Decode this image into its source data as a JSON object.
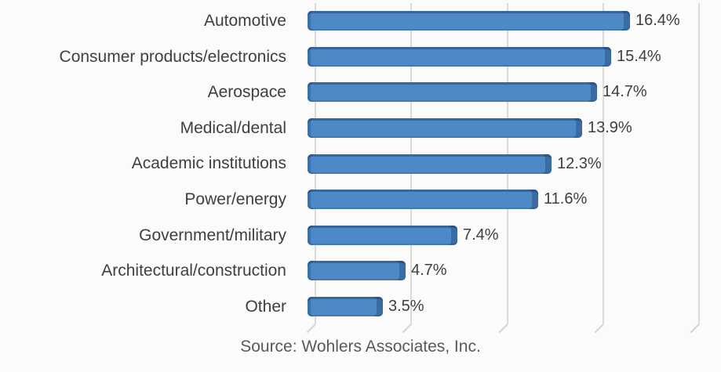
{
  "chart_data": {
    "type": "bar",
    "orientation": "horizontal",
    "title": "",
    "categories": [
      "Automotive",
      "Consumer products/electronics",
      "Aerospace",
      "Medical/dental",
      "Academic institutions",
      "Power/energy",
      "Government/military",
      "Architectural/construction",
      "Other"
    ],
    "values": [
      16.4,
      15.4,
      14.7,
      13.9,
      12.3,
      11.6,
      7.4,
      4.7,
      3.5
    ],
    "value_labels": [
      "16.4%",
      "15.4%",
      "14.7%",
      "13.9%",
      "12.3%",
      "11.6%",
      "7.4%",
      "4.7%",
      "3.5%"
    ],
    "xlim": [
      0,
      20
    ],
    "gridline_step": 5,
    "grid": true,
    "legend": "none",
    "axis_tick_labels_visible": false,
    "source": "Source: Wohlers Associates, Inc.",
    "colors": {
      "bar_fill": "#4D88C7",
      "bar_edge": "#38659B",
      "gridline": "#DADADA",
      "category_text": "#3F3F3F",
      "value_text": "#3F3F3F",
      "source_text": "#595959",
      "background": "#FBFBFB"
    }
  }
}
